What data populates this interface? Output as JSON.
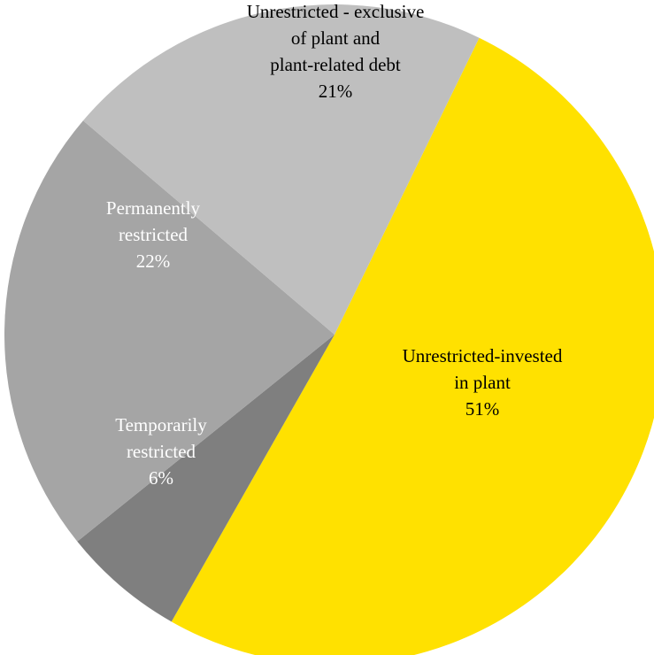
{
  "chart_data": {
    "type": "pie",
    "title": "",
    "slices": [
      {
        "key": "invested",
        "lines": [
          "Unrestricted-invested",
          "in plant"
        ],
        "percent_label": "51%",
        "value": 51,
        "color": "#FFE100",
        "text_color": "#000000"
      },
      {
        "key": "temporarily",
        "lines": [
          "Temporarily",
          "restricted"
        ],
        "percent_label": "6%",
        "value": 6,
        "color": "#7F7F7F",
        "text_color": "#ffffff"
      },
      {
        "key": "permanently",
        "lines": [
          "Permanently",
          "restricted"
        ],
        "percent_label": "22%",
        "value": 22,
        "color": "#A5A5A5",
        "text_color": "#ffffff"
      },
      {
        "key": "unrestricted-exclusive",
        "lines": [
          "Unrestricted - exclusive",
          "of plant and",
          "plant-related debt"
        ],
        "percent_label": "21%",
        "value": 21,
        "color": "#BFBFBF",
        "text_color": "#000000"
      }
    ]
  }
}
